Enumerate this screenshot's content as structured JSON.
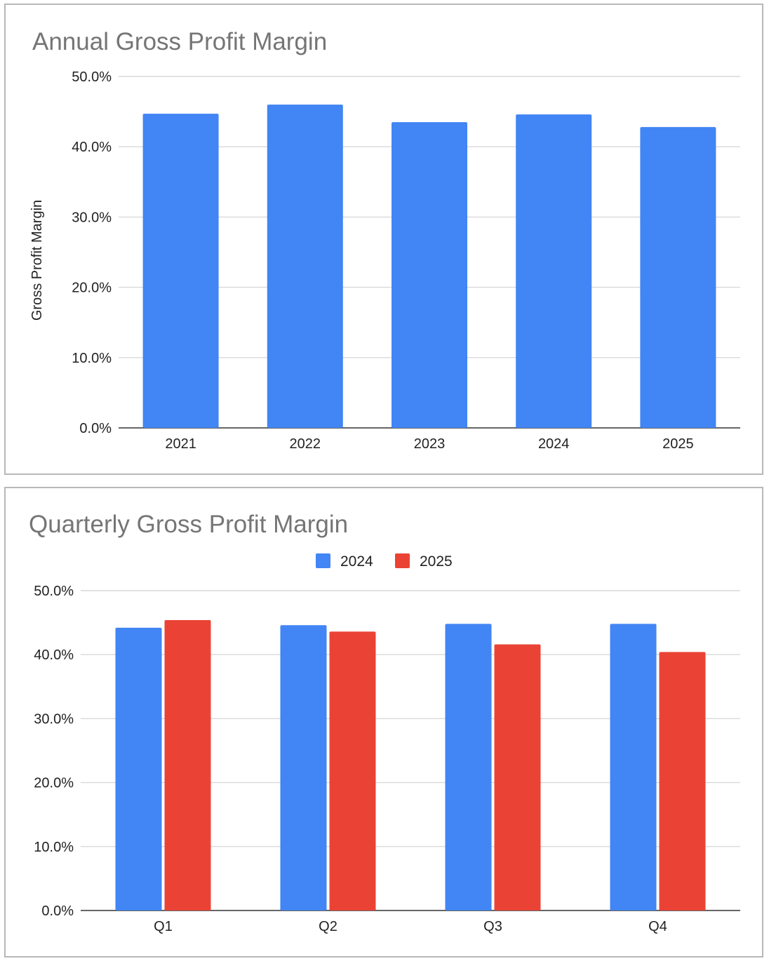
{
  "chart_data": [
    {
      "type": "bar",
      "title": "Annual Gross Profit Margin",
      "xlabel": "",
      "ylabel": "Gross Profit Margin",
      "categories": [
        "2021",
        "2022",
        "2023",
        "2024",
        "2025"
      ],
      "series": [
        {
          "name": "Gross Profit Margin",
          "color": "#4285f4",
          "values": [
            44.7,
            46.0,
            43.5,
            44.6,
            42.8
          ]
        }
      ],
      "ylim": [
        0,
        50
      ],
      "yticks": [
        0,
        10,
        20,
        30,
        40,
        50
      ],
      "ytick_labels": [
        "0.0%",
        "10.0%",
        "20.0%",
        "30.0%",
        "40.0%",
        "50.0%"
      ],
      "legend": "none",
      "grid": true
    },
    {
      "type": "bar",
      "title": "Quarterly Gross Profit Margin",
      "xlabel": "",
      "ylabel": "",
      "categories": [
        "Q1",
        "Q2",
        "Q3",
        "Q4"
      ],
      "series": [
        {
          "name": "2024",
          "color": "#4285f4",
          "values": [
            44.2,
            44.6,
            44.8,
            44.8
          ]
        },
        {
          "name": "2025",
          "color": "#ea4335",
          "values": [
            45.4,
            43.6,
            41.6,
            40.4
          ]
        }
      ],
      "ylim": [
        0,
        50
      ],
      "yticks": [
        0,
        10,
        20,
        30,
        40,
        50
      ],
      "ytick_labels": [
        "0.0%",
        "10.0%",
        "20.0%",
        "30.0%",
        "40.0%",
        "50.0%"
      ],
      "legend": "top-center",
      "grid": true
    }
  ]
}
